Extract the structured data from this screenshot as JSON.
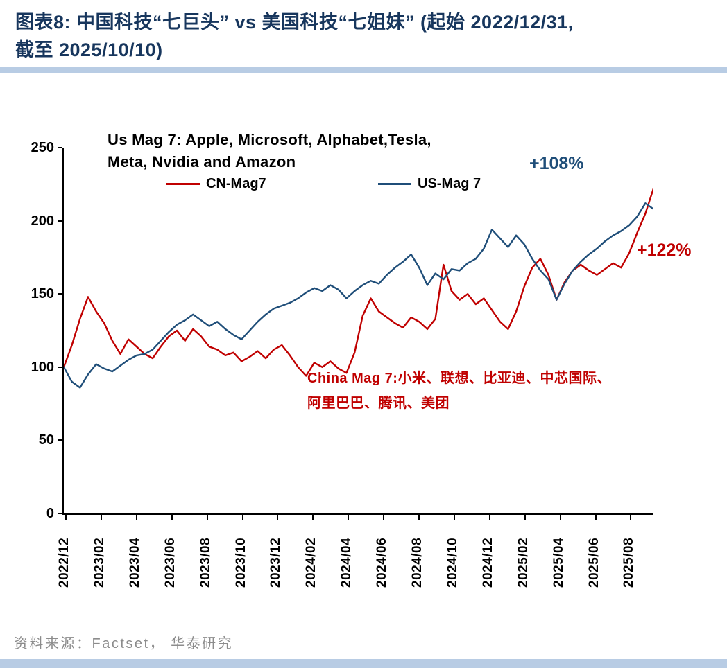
{
  "header": {
    "title_line1": "图表8:  中国科技“七巨头” vs 美国科技“七姐妹” (起始 2022/12/31,",
    "title_line2": "截至 2025/10/10)"
  },
  "footer": {
    "source": "资料来源：Factset， 华泰研究"
  },
  "chart_data": {
    "type": "line",
    "title": "中国科技七巨头 vs 美国科技七姐妹 (indexed, 2022/12/31 = 100)",
    "ylim": [
      0,
      250
    ],
    "y_ticks": [
      0,
      50,
      100,
      150,
      200,
      250
    ],
    "x_span_months": 33.4,
    "x_tick_start_month": 0.2,
    "x_tick_interval_months": 2,
    "x_tick_labels": [
      "2022/12",
      "2023/02",
      "2023/04",
      "2023/06",
      "2023/08",
      "2023/10",
      "2023/12",
      "2024/02",
      "2024/04",
      "2024/06",
      "2024/08",
      "2024/10",
      "2024/12",
      "2025/02",
      "2025/04",
      "2025/06",
      "2025/08"
    ],
    "grid": "off",
    "legend_position": "top-inside",
    "series": [
      {
        "name": "CN-Mag7",
        "color": "#C00000",
        "values": [
          100,
          115,
          133,
          148,
          138,
          130,
          118,
          109,
          119,
          114,
          109,
          106,
          114,
          121,
          125,
          118,
          126,
          121,
          114,
          112,
          108,
          110,
          104,
          107,
          111,
          106,
          112,
          115,
          108,
          100,
          94,
          103,
          100,
          104,
          99,
          96,
          110,
          135,
          147,
          138,
          134,
          130,
          127,
          134,
          131,
          126,
          133,
          170,
          152,
          146,
          150,
          143,
          147,
          139,
          131,
          126,
          138,
          155,
          168,
          174,
          163,
          146,
          158,
          166,
          170,
          166,
          163,
          167,
          171,
          168,
          178,
          192,
          205,
          222
        ]
      },
      {
        "name": "US-Mag 7",
        "color": "#1F4E79",
        "values": [
          100,
          90,
          86,
          95,
          102,
          99,
          97,
          101,
          105,
          108,
          109,
          112,
          118,
          124,
          129,
          132,
          136,
          132,
          128,
          131,
          126,
          122,
          119,
          125,
          131,
          136,
          140,
          142,
          144,
          147,
          151,
          154,
          152,
          156,
          153,
          147,
          152,
          156,
          159,
          157,
          163,
          168,
          172,
          177,
          168,
          156,
          164,
          160,
          167,
          166,
          171,
          174,
          181,
          194,
          188,
          182,
          190,
          184,
          174,
          166,
          160,
          146,
          157,
          166,
          172,
          177,
          181,
          186,
          190,
          193,
          197,
          203,
          212,
          208
        ]
      }
    ],
    "annotations": {
      "us_note_line1": "Us Mag 7: Apple, Microsoft, Alphabet,Tesla,",
      "us_note_line2": "Meta, Nvidia and Amazon",
      "us_gain": "+108%",
      "cn_gain": "+122%",
      "cn_note_line1": "China Mag 7:小米、联想、比亚迪、中芯国际、",
      "cn_note_line2": "阿里巴巴、腾讯、美团"
    }
  }
}
